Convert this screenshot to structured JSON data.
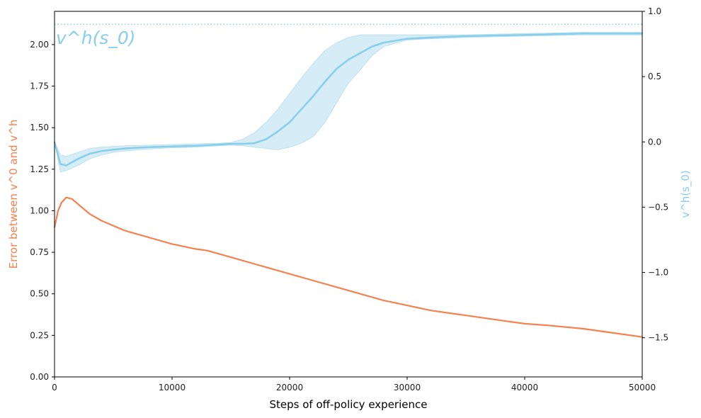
{
  "chart_data": {
    "type": "line",
    "xlabel": "Steps of off-policy experience",
    "ylabel_left": "Error between v^0 and v^h",
    "ylabel_right": "v^h(s_0)",
    "annotation": "v^h(s_0)",
    "xlim": [
      0,
      50000
    ],
    "ylim_left": [
      0,
      2.2
    ],
    "ylim_right": [
      -1.8,
      1.0
    ],
    "x_ticks": [
      "0",
      "10000",
      "20000",
      "30000",
      "40000",
      "50000"
    ],
    "y_left_ticks": [
      "0.00",
      "0.25",
      "0.50",
      "0.75",
      "1.00",
      "1.25",
      "1.50",
      "1.75",
      "2.00"
    ],
    "y_right_ticks": [
      "−1.5",
      "−1.0",
      "−0.5",
      "0.0",
      "0.5",
      "1.0"
    ],
    "reference_line": {
      "axis": "right",
      "value": 0.9,
      "style": "dotted"
    },
    "colors": {
      "error": "#f4814f",
      "value": "#87ceeb",
      "band": "#cfe9f5",
      "axes": "#000000"
    },
    "series": [
      {
        "axis": "left",
        "x": [
          0,
          300,
          600,
          1000,
          1500,
          2000,
          3000,
          4000,
          5000,
          6000,
          7000,
          8000,
          10000,
          12000,
          13000,
          15000,
          17000,
          18000,
          20000,
          22000,
          24000,
          26000,
          28000,
          30000,
          32000,
          35000,
          38000,
          40000,
          42000,
          45000,
          48000,
          50000
        ],
        "values": [
          0.9,
          1.0,
          1.05,
          1.08,
          1.07,
          1.04,
          0.98,
          0.94,
          0.91,
          0.88,
          0.86,
          0.84,
          0.8,
          0.77,
          0.76,
          0.72,
          0.68,
          0.66,
          0.62,
          0.58,
          0.54,
          0.5,
          0.46,
          0.43,
          0.4,
          0.37,
          0.34,
          0.32,
          0.31,
          0.29,
          0.26,
          0.24
        ]
      },
      {
        "axis": "right",
        "x": [
          0,
          500,
          1000,
          2000,
          3000,
          4000,
          5000,
          6000,
          8000,
          10000,
          12000,
          14000,
          15000,
          16000,
          17000,
          18000,
          19000,
          20000,
          21000,
          22000,
          23000,
          24000,
          25000,
          26000,
          27000,
          28000,
          30000,
          32000,
          35000,
          40000,
          45000,
          50000
        ],
        "values": [
          0.0,
          -0.17,
          -0.18,
          -0.13,
          -0.09,
          -0.07,
          -0.06,
          -0.05,
          -0.04,
          -0.035,
          -0.03,
          -0.02,
          -0.015,
          -0.015,
          -0.01,
          0.02,
          0.08,
          0.15,
          0.25,
          0.35,
          0.46,
          0.56,
          0.63,
          0.68,
          0.73,
          0.76,
          0.79,
          0.8,
          0.81,
          0.82,
          0.83,
          0.83
        ],
        "band_lower": [
          0.0,
          -0.23,
          -0.22,
          -0.18,
          -0.13,
          -0.1,
          -0.08,
          -0.07,
          -0.055,
          -0.045,
          -0.04,
          -0.03,
          -0.025,
          -0.03,
          -0.04,
          -0.05,
          -0.06,
          -0.04,
          -0.01,
          0.04,
          0.15,
          0.3,
          0.45,
          0.55,
          0.66,
          0.73,
          0.78,
          0.79,
          0.8,
          0.81,
          0.82,
          0.82
        ],
        "band_upper": [
          0.0,
          -0.1,
          -0.11,
          -0.08,
          -0.05,
          -0.04,
          -0.035,
          -0.03,
          -0.025,
          -0.02,
          -0.015,
          -0.01,
          -0.005,
          0.02,
          0.07,
          0.15,
          0.25,
          0.37,
          0.49,
          0.6,
          0.7,
          0.76,
          0.8,
          0.82,
          0.82,
          0.82,
          0.82,
          0.82,
          0.82,
          0.83,
          0.84,
          0.84
        ]
      }
    ]
  }
}
